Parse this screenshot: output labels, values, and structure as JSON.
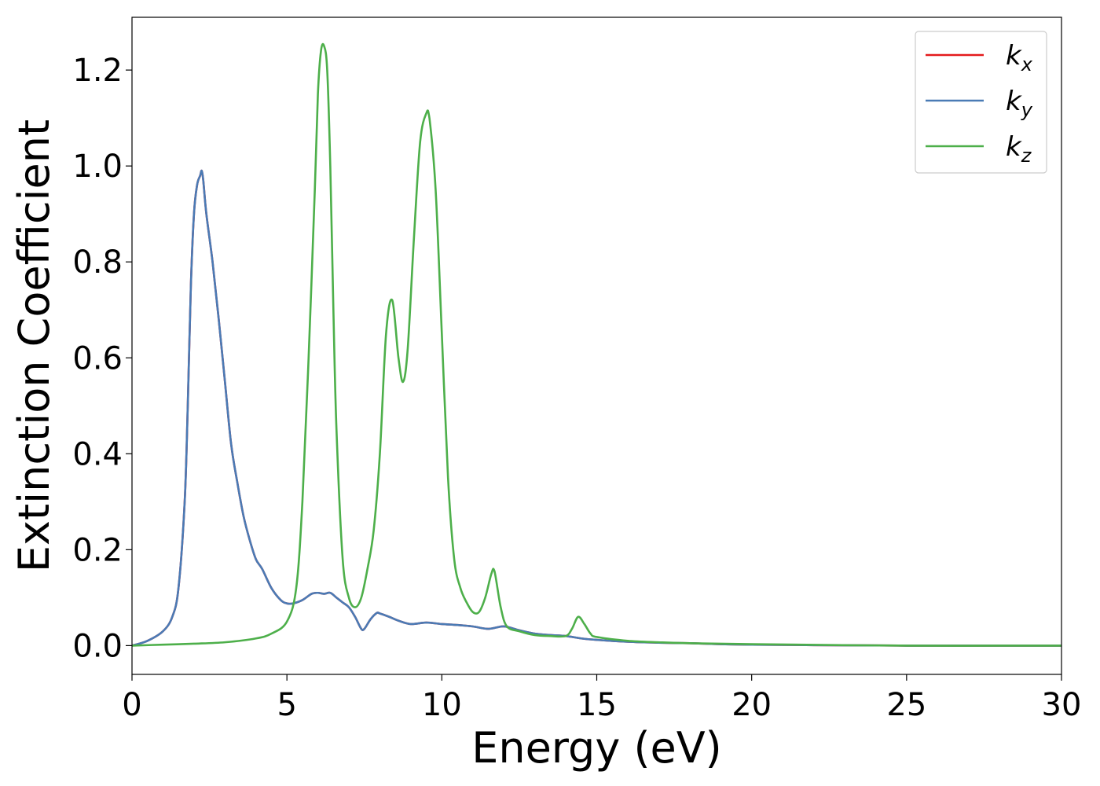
{
  "chart_data": {
    "type": "line",
    "title": "",
    "xlabel": "Energy (eV)",
    "ylabel": "Extinction Coefficient",
    "xlim": [
      0,
      30
    ],
    "ylim": [
      -0.06,
      1.31
    ],
    "xticks": [
      0,
      5,
      10,
      15,
      20,
      25,
      30
    ],
    "yticks": [
      0.0,
      0.2,
      0.4,
      0.6,
      0.8,
      1.0,
      1.2
    ],
    "xtick_labels": [
      "0",
      "5",
      "10",
      "15",
      "20",
      "25",
      "30"
    ],
    "ytick_labels": [
      "0.0",
      "0.2",
      "0.4",
      "0.6",
      "0.8",
      "1.0",
      "1.2"
    ],
    "grid": false,
    "legend_position": "top-right",
    "series": [
      {
        "name": "k_x",
        "label_main": "k",
        "label_sub": "x",
        "color": "#e41a1c",
        "x": [
          0,
          0.5,
          1.0,
          1.3,
          1.5,
          1.7,
          1.8,
          1.9,
          2.0,
          2.1,
          2.2,
          2.25,
          2.3,
          2.4,
          2.6,
          2.8,
          3.0,
          3.2,
          3.4,
          3.6,
          3.8,
          4.0,
          4.2,
          4.5,
          4.8,
          5.0,
          5.2,
          5.5,
          5.8,
          6.0,
          6.2,
          6.4,
          6.6,
          6.8,
          7.0,
          7.2,
          7.4,
          7.5,
          7.7,
          7.9,
          8.0,
          8.3,
          8.6,
          9.0,
          9.5,
          10.0,
          10.5,
          11.0,
          11.5,
          12.0,
          12.5,
          13.0,
          13.5,
          14.0,
          14.5,
          15.0,
          16.0,
          17.0,
          18.0,
          19.0,
          20.0,
          22.0,
          25.0,
          30.0
        ],
        "values": [
          0.0,
          0.01,
          0.03,
          0.06,
          0.12,
          0.3,
          0.5,
          0.75,
          0.9,
          0.96,
          0.98,
          0.99,
          0.97,
          0.9,
          0.8,
          0.68,
          0.55,
          0.42,
          0.34,
          0.27,
          0.22,
          0.18,
          0.16,
          0.12,
          0.095,
          0.088,
          0.088,
          0.095,
          0.108,
          0.11,
          0.108,
          0.11,
          0.1,
          0.09,
          0.08,
          0.06,
          0.035,
          0.035,
          0.055,
          0.068,
          0.067,
          0.06,
          0.052,
          0.045,
          0.048,
          0.045,
          0.043,
          0.04,
          0.035,
          0.04,
          0.032,
          0.025,
          0.022,
          0.02,
          0.015,
          0.012,
          0.008,
          0.006,
          0.005,
          0.003,
          0.002,
          0.001,
          0.0,
          0.0
        ]
      },
      {
        "name": "k_y",
        "label_main": "k",
        "label_sub": "y",
        "color": "#4a7bb5",
        "x": [
          0,
          0.5,
          1.0,
          1.3,
          1.5,
          1.7,
          1.8,
          1.9,
          2.0,
          2.1,
          2.2,
          2.25,
          2.3,
          2.4,
          2.6,
          2.8,
          3.0,
          3.2,
          3.4,
          3.6,
          3.8,
          4.0,
          4.2,
          4.5,
          4.8,
          5.0,
          5.2,
          5.5,
          5.8,
          6.0,
          6.2,
          6.4,
          6.6,
          6.8,
          7.0,
          7.2,
          7.4,
          7.5,
          7.7,
          7.9,
          8.0,
          8.3,
          8.6,
          9.0,
          9.5,
          10.0,
          10.5,
          11.0,
          11.5,
          12.0,
          12.5,
          13.0,
          13.5,
          14.0,
          14.5,
          15.0,
          16.0,
          17.0,
          18.0,
          19.0,
          20.0,
          22.0,
          25.0,
          30.0
        ],
        "values": [
          0.0,
          0.01,
          0.03,
          0.06,
          0.12,
          0.3,
          0.5,
          0.75,
          0.9,
          0.96,
          0.98,
          0.99,
          0.97,
          0.9,
          0.8,
          0.68,
          0.55,
          0.42,
          0.34,
          0.27,
          0.22,
          0.18,
          0.16,
          0.12,
          0.095,
          0.088,
          0.088,
          0.095,
          0.108,
          0.11,
          0.108,
          0.11,
          0.1,
          0.09,
          0.08,
          0.06,
          0.035,
          0.035,
          0.055,
          0.068,
          0.067,
          0.06,
          0.052,
          0.045,
          0.048,
          0.045,
          0.043,
          0.04,
          0.035,
          0.04,
          0.032,
          0.025,
          0.022,
          0.02,
          0.015,
          0.012,
          0.008,
          0.006,
          0.005,
          0.003,
          0.002,
          0.001,
          0.0,
          0.0
        ]
      },
      {
        "name": "k_z",
        "label_main": "k",
        "label_sub": "z",
        "color": "#4daf4a",
        "x": [
          0,
          1.0,
          2.0,
          3.0,
          4.0,
          4.5,
          5.0,
          5.3,
          5.5,
          5.7,
          5.9,
          6.0,
          6.1,
          6.2,
          6.3,
          6.4,
          6.5,
          6.6,
          6.8,
          7.0,
          7.2,
          7.4,
          7.6,
          7.8,
          8.0,
          8.2,
          8.4,
          8.6,
          8.75,
          8.9,
          9.1,
          9.3,
          9.5,
          9.6,
          9.8,
          10.0,
          10.2,
          10.4,
          10.6,
          10.8,
          11.0,
          11.2,
          11.4,
          11.6,
          11.7,
          11.9,
          12.1,
          12.5,
          13.0,
          13.5,
          14.0,
          14.2,
          14.4,
          14.6,
          14.8,
          15.0,
          16.0,
          17.0,
          18.0,
          20.0,
          25.0,
          30.0
        ],
        "values": [
          0.0,
          0.002,
          0.004,
          0.007,
          0.015,
          0.025,
          0.05,
          0.12,
          0.3,
          0.6,
          0.95,
          1.15,
          1.24,
          1.25,
          1.2,
          1.0,
          0.7,
          0.45,
          0.18,
          0.1,
          0.08,
          0.1,
          0.16,
          0.24,
          0.4,
          0.65,
          0.72,
          0.6,
          0.55,
          0.62,
          0.85,
          1.05,
          1.11,
          1.1,
          0.95,
          0.65,
          0.35,
          0.18,
          0.12,
          0.09,
          0.07,
          0.07,
          0.1,
          0.15,
          0.155,
          0.08,
          0.04,
          0.03,
          0.022,
          0.02,
          0.02,
          0.035,
          0.06,
          0.045,
          0.025,
          0.018,
          0.01,
          0.007,
          0.005,
          0.003,
          0.0,
          0.0
        ]
      }
    ]
  }
}
